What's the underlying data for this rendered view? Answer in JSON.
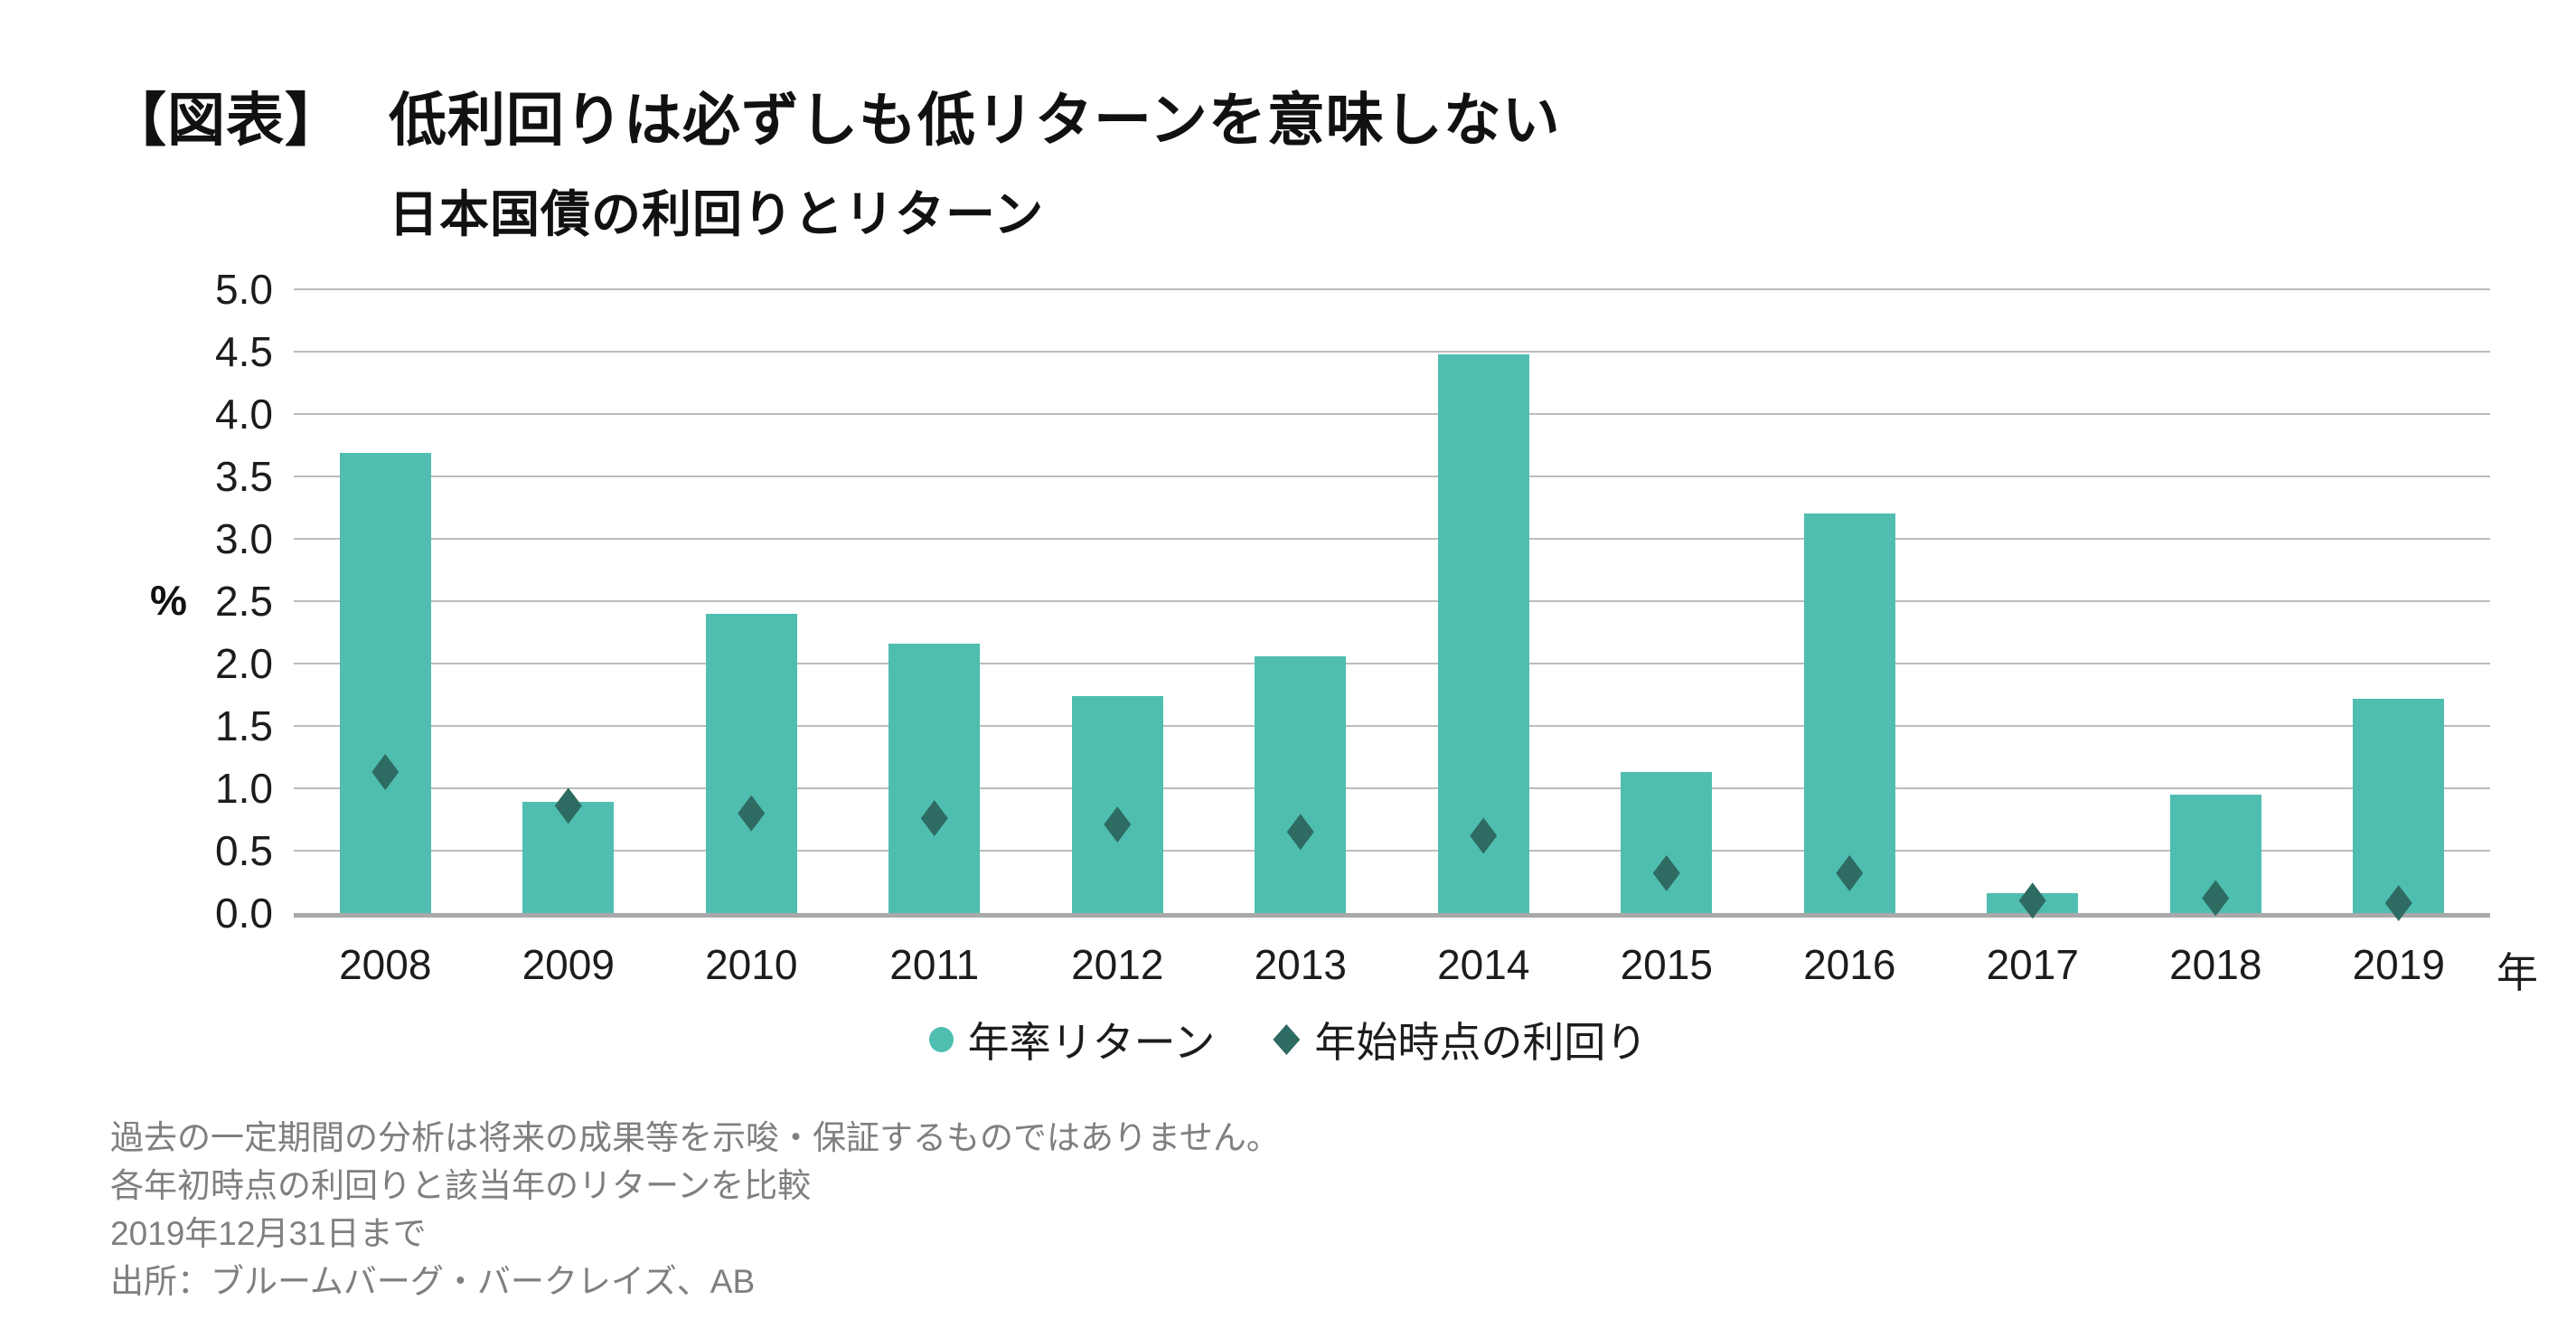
{
  "header": {
    "tag": "【図表】",
    "title": "低利回りは必ずしも低リターンを意味しない",
    "subtitle": "日本国債の利回りとリターン"
  },
  "chart_data": {
    "type": "bar",
    "title": "日本国債の利回りとリターン",
    "categories": [
      "2008",
      "2009",
      "2010",
      "2011",
      "2012",
      "2013",
      "2014",
      "2015",
      "2016",
      "2017",
      "2018",
      "2019"
    ],
    "series": [
      {
        "name": "年率リターン",
        "type": "bar",
        "marker": "circle",
        "color": "#4FBEB0",
        "values": [
          3.69,
          0.89,
          2.4,
          2.16,
          1.74,
          2.06,
          4.48,
          1.13,
          3.2,
          0.16,
          0.95,
          1.72
        ]
      },
      {
        "name": "年始時点の利回り",
        "type": "scatter",
        "marker": "diamond",
        "color": "#2E6B62",
        "values": [
          1.13,
          0.86,
          0.8,
          0.76,
          0.71,
          0.65,
          0.62,
          0.32,
          0.32,
          0.1,
          0.12,
          0.08
        ]
      }
    ],
    "ylabel": "%",
    "x_unit_label": "年",
    "ylim": [
      0,
      5
    ],
    "ytick_step": 0.5,
    "yticks": [
      "0.0",
      "0.5",
      "1.0",
      "1.5",
      "2.0",
      "2.5",
      "3.0",
      "3.5",
      "4.0",
      "4.5",
      "5.0"
    ],
    "grid": true,
    "legend_position": "bottom",
    "gridline_color": "#bcbcbc",
    "axis_line_color": "#a9a9a9"
  },
  "footnotes": {
    "lines": [
      "過去の一定期間の分析は将来の成果等を示唆・保証するものではありません。",
      "各年初時点の利回りと該当年のリターンを比較",
      "2019年12月31日まで",
      "出所：ブルームバーグ・バークレイズ、AB"
    ]
  }
}
